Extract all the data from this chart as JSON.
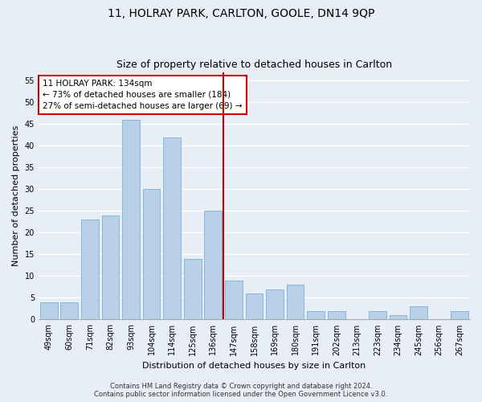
{
  "title": "11, HOLRAY PARK, CARLTON, GOOLE, DN14 9QP",
  "subtitle": "Size of property relative to detached houses in Carlton",
  "xlabel": "Distribution of detached houses by size in Carlton",
  "ylabel": "Number of detached properties",
  "categories": [
    "49sqm",
    "60sqm",
    "71sqm",
    "82sqm",
    "93sqm",
    "104sqm",
    "114sqm",
    "125sqm",
    "136sqm",
    "147sqm",
    "158sqm",
    "169sqm",
    "180sqm",
    "191sqm",
    "202sqm",
    "213sqm",
    "223sqm",
    "234sqm",
    "245sqm",
    "256sqm",
    "267sqm"
  ],
  "values": [
    4,
    4,
    23,
    24,
    46,
    30,
    42,
    14,
    25,
    9,
    6,
    7,
    8,
    2,
    2,
    0,
    2,
    1,
    3,
    0,
    2
  ],
  "bar_color": "#b8d0e8",
  "bar_edgecolor": "#7aafd4",
  "vline_x": 8.5,
  "vline_color": "#cc0000",
  "annotation_text": "11 HOLRAY PARK: 134sqm\n← 73% of detached houses are smaller (184)\n27% of semi-detached houses are larger (69) →",
  "annotation_box_edgecolor": "#cc0000",
  "ylim": [
    0,
    57
  ],
  "yticks": [
    0,
    5,
    10,
    15,
    20,
    25,
    30,
    35,
    40,
    45,
    50,
    55
  ],
  "background_color": "#e8eef5",
  "grid_color": "#ffffff",
  "footer_text": "Contains HM Land Registry data © Crown copyright and database right 2024.\nContains public sector information licensed under the Open Government Licence v3.0.",
  "title_fontsize": 10,
  "subtitle_fontsize": 9,
  "axis_label_fontsize": 8,
  "tick_fontsize": 7,
  "annotation_fontsize": 7.5,
  "footer_fontsize": 6
}
